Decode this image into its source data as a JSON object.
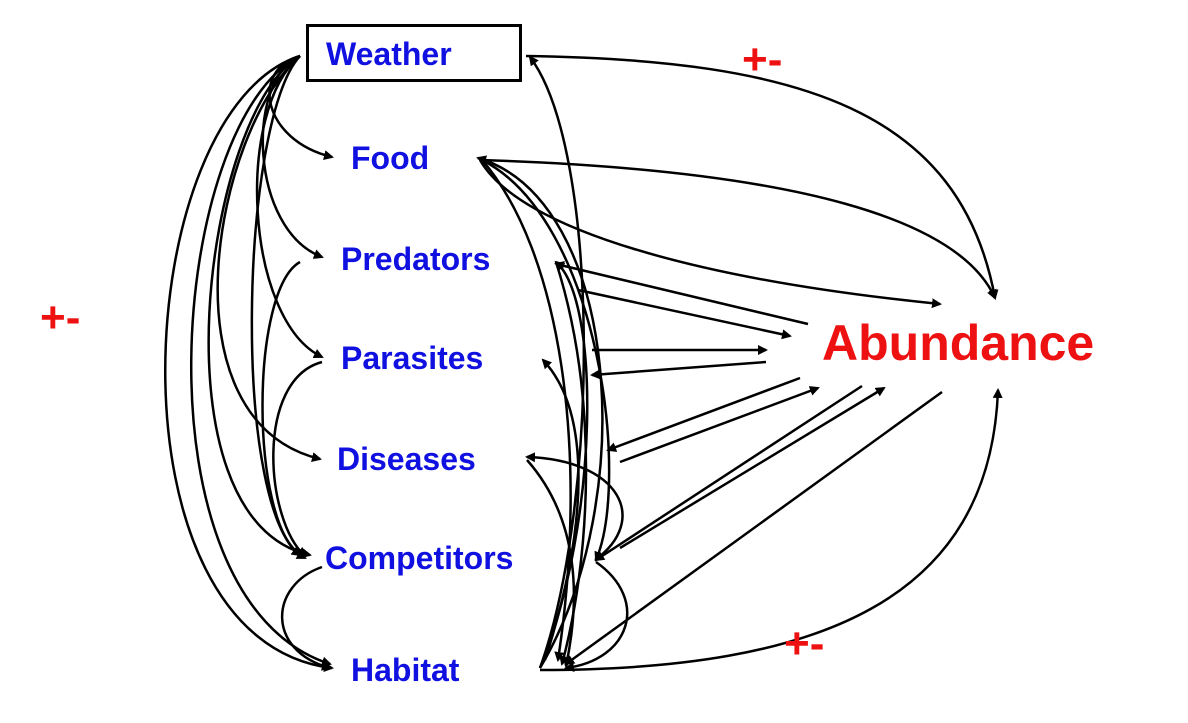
{
  "diagram": {
    "nodes": {
      "weather": "Weather",
      "food": "Food",
      "predators": "Predators",
      "parasites": "Parasites",
      "diseases": "Diseases",
      "competitors": "Competitors",
      "habitat": "Habitat",
      "abundance": "Abundance"
    },
    "effect_labels": {
      "top": "+-",
      "left": "+-",
      "bottom": "+-"
    },
    "colors": {
      "factor_text": "#1010e0",
      "abundance_text": "#ee1111",
      "effect_text": "#ee1111",
      "arrows": "#000000"
    }
  }
}
